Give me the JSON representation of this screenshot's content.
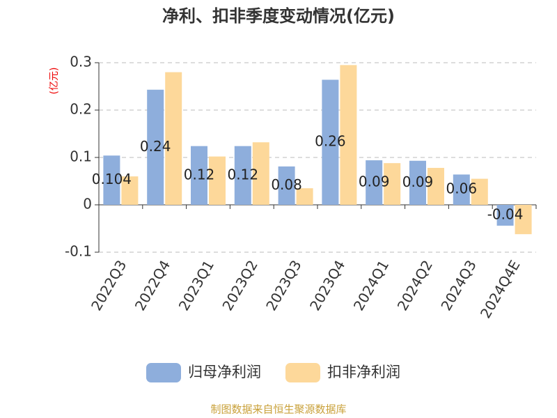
{
  "chart_data": {
    "type": "bar",
    "title": "净利、扣非季度变动情况(亿元)",
    "y_label": "(亿元)",
    "categories": [
      "2022Q3",
      "2022Q4",
      "2023Q1",
      "2023Q2",
      "2023Q3",
      "2023Q4",
      "2024Q1",
      "2024Q2",
      "2024Q3",
      "2024Q4E"
    ],
    "series": [
      {
        "name": "归母净利润",
        "color": "#8eaedc",
        "values": [
          0.104,
          0.243,
          0.124,
          0.124,
          0.081,
          0.264,
          0.094,
          0.093,
          0.064,
          -0.044
        ],
        "value_labels": [
          "0.104",
          "0.24",
          "0.12",
          "0.12",
          "0.08",
          "0.26",
          "0.09",
          "0.09",
          "0.06",
          "-0.04"
        ]
      },
      {
        "name": "扣非净利润",
        "color": "#fdd89a",
        "values": [
          0.06,
          0.28,
          0.102,
          0.132,
          0.035,
          0.295,
          0.088,
          0.078,
          0.055,
          -0.062
        ]
      }
    ],
    "ylim": [
      -0.1,
      0.3
    ],
    "yticks": [
      -0.1,
      0,
      0.1,
      0.2,
      0.3
    ],
    "grid": true,
    "legend": "bottom",
    "source": "制图数据来自恒生聚源数据库"
  }
}
